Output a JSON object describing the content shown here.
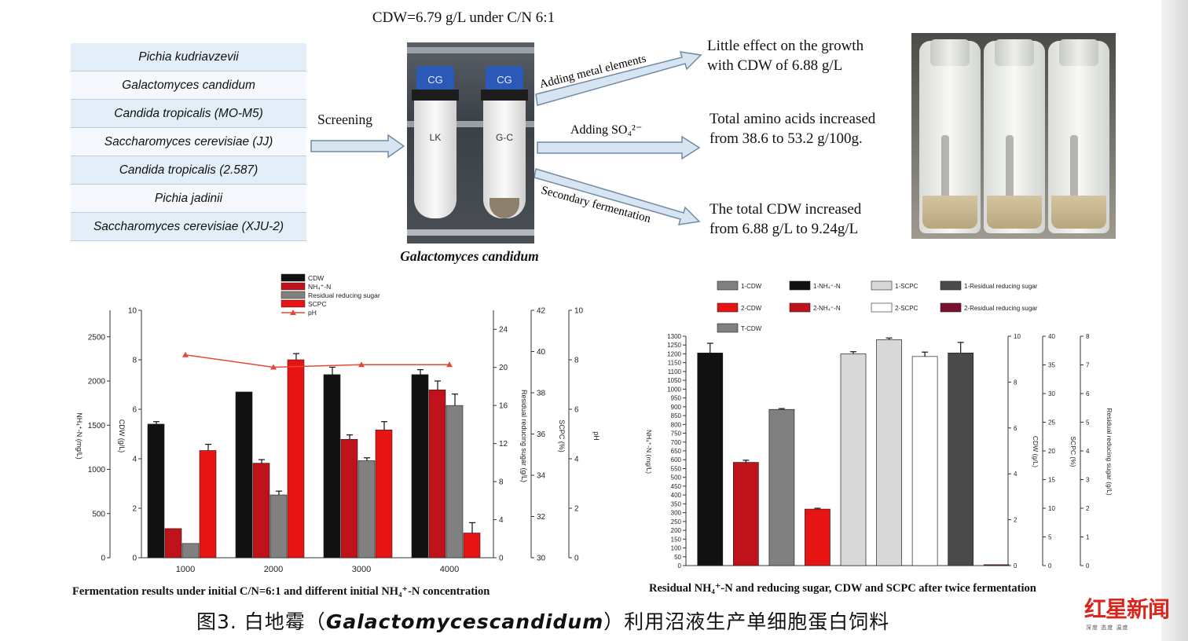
{
  "header": "CDW=6.79 g/L under C/N 6:1",
  "yeasts": [
    "Pichia kudriavzevii",
    "Galactomyces candidum",
    "Candida tropicalis (MO-M5)",
    "Saccharomyces cerevisiae (JJ)",
    "Candida tropicalis (2.587)",
    "Pichia jadinii",
    "Saccharomyces cerevisiae (XJU-2)"
  ],
  "screening": "Screening",
  "photo_caption": "Galactomyces candidum",
  "tube_labels": [
    "LK",
    "G-C"
  ],
  "cap_labels": [
    "CG",
    "CG"
  ],
  "arrows": {
    "metal": "Adding metal elements",
    "so4": "Adding SO₄²⁻",
    "secondary": "Secondary fermentation"
  },
  "results": {
    "metal": [
      "Little effect on the growth",
      "with CDW of 6.88 g/L"
    ],
    "so4": [
      "Total amino acids increased",
      "from 38.6 to 53.2 g/100g."
    ],
    "secondary": [
      "The total CDW increased",
      "from 6.88 g/L to 9.24g/L"
    ]
  },
  "colors": {
    "black": "#111111",
    "dark_red": "#c0121a",
    "gray": "#808080",
    "red": "#e81414",
    "ph": "#e04a35",
    "light_gray": "#d8d8d8",
    "dark_gray": "#4a4a4a",
    "maroon": "#7a1030"
  },
  "chart_data": [
    {
      "type": "bar",
      "caption": "Fermentation results under initial C/N=6:1 and different initial NH₄⁺-N concentration",
      "categories": [
        "1000",
        "2000",
        "3000",
        "4000"
      ],
      "series": [
        {
          "name": "CDW",
          "axis": "CDW (g/L)",
          "values": [
            5.4,
            6.7,
            7.4,
            7.4
          ],
          "errors": [
            0.1,
            0,
            0.3,
            0.2
          ]
        },
        {
          "name": "NH₄⁺-N",
          "axis": "NH₄⁺-N (mg/L)",
          "values": [
            330,
            1070,
            1340,
            1900
          ],
          "errors": [
            0,
            40,
            50,
            100
          ]
        },
        {
          "name": "Residual reducing sugar",
          "axis": "Residual reducing sugar (g/L)",
          "values": [
            1.5,
            6.6,
            10.2,
            16.0
          ],
          "errors": [
            0,
            0.4,
            0.3,
            1.2
          ]
        },
        {
          "name": "SCPC",
          "axis": "SCPC (%)",
          "values": [
            35.2,
            39.6,
            36.2,
            31.2
          ],
          "errors": [
            0.3,
            0.3,
            0.4,
            0.5
          ]
        },
        {
          "name": "pH",
          "type": "line",
          "axis": "pH",
          "values": [
            8.2,
            7.7,
            7.8,
            7.8
          ]
        }
      ],
      "axes": {
        "cdw": {
          "label": "CDW (g/L)",
          "range": [
            0,
            10
          ],
          "ticks": [
            "0",
            "2",
            "4",
            "6",
            "8",
            "10"
          ]
        },
        "nh4": {
          "label": "NH₄⁺-N (mg/L)",
          "range": [
            0,
            2800
          ],
          "ticks": [
            "0",
            "500",
            "1000",
            "1500",
            "2000",
            "2500"
          ]
        },
        "sugar": {
          "label": "Residual reducing sugar (g/L)",
          "range": [
            0,
            26
          ],
          "ticks": [
            "0",
            "4",
            "8",
            "12",
            "16",
            "20",
            "24"
          ]
        },
        "scpc": {
          "label": "SCPC (%)",
          "range": [
            30,
            42
          ],
          "ticks": [
            "30",
            "32",
            "34",
            "36",
            "38",
            "40",
            "42"
          ]
        },
        "ph": {
          "label": "pH",
          "range": [
            0,
            10
          ],
          "ticks": [
            "0",
            "2",
            "4",
            "6",
            "8",
            "10"
          ]
        }
      }
    },
    {
      "type": "bar",
      "caption": "Residual NH₄⁺-N and reducing sugar, CDW and SCPC after twice fermentation",
      "categories": [
        "1-NH₄⁺-N",
        "2-CDW",
        "1-CDW",
        "2-NH₄⁺-N",
        "1-Residual reducing sugar",
        "1-SCPC",
        "2-SCPC",
        "T-CDW",
        "2-Residual reducing sugar"
      ],
      "legend": [
        "1-CDW",
        "1-NH₄⁺-N",
        "1-SCPC",
        "1-Residual reducing sugar",
        "2-CDW",
        "2-NH₄⁺-N",
        "2-SCPC",
        "2-Residual reducing sugar",
        "T-CDW"
      ],
      "values_nh4_axis": [
        1205,
        585,
        885,
        320,
        1200,
        1280,
        1185,
        1205,
        5
      ],
      "errors": [
        55,
        12,
        5,
        5,
        12,
        10,
        25,
        60,
        0
      ],
      "colors": [
        "#111111",
        "#c0121a",
        "#808080",
        "#e81414",
        "#d8d8d8",
        "#d8d8d8",
        "#ffffff",
        "#4a4a4a",
        "#7a1030"
      ],
      "axes": {
        "nh4": {
          "label": "NH₄⁺-N (mg/L)",
          "range": [
            0,
            1300
          ],
          "ticks": [
            "0",
            "50",
            "100",
            "150",
            "200",
            "250",
            "300",
            "350",
            "400",
            "450",
            "500",
            "550",
            "600",
            "650",
            "700",
            "750",
            "800",
            "850",
            "900",
            "950",
            "1000",
            "1050",
            "1100",
            "1150",
            "1200",
            "1250",
            "1300"
          ]
        },
        "cdw": {
          "label": "CDW (g/L)",
          "range": [
            0,
            10
          ],
          "ticks": [
            "0",
            "2",
            "4",
            "6",
            "8",
            "10"
          ]
        },
        "scpc": {
          "label": "SCPC (%)",
          "range": [
            0,
            40
          ],
          "ticks": [
            "0",
            "5",
            "10",
            "15",
            "20",
            "25",
            "30",
            "35",
            "40"
          ]
        },
        "sugar": {
          "label": "Residual reducing sugar (g/L)",
          "range": [
            0,
            8
          ],
          "ticks": [
            "0",
            "1",
            "2",
            "3",
            "4",
            "5",
            "6",
            "7",
            "8"
          ]
        }
      }
    }
  ],
  "caption_cn": {
    "pre": "图3. 白地霉（",
    "species": "Galactomycescandidum",
    "post": "）利用沼液生产单细胞蛋白饲料"
  },
  "logo": {
    "main": "红星新闻",
    "sub": "深度 态度 温度"
  }
}
